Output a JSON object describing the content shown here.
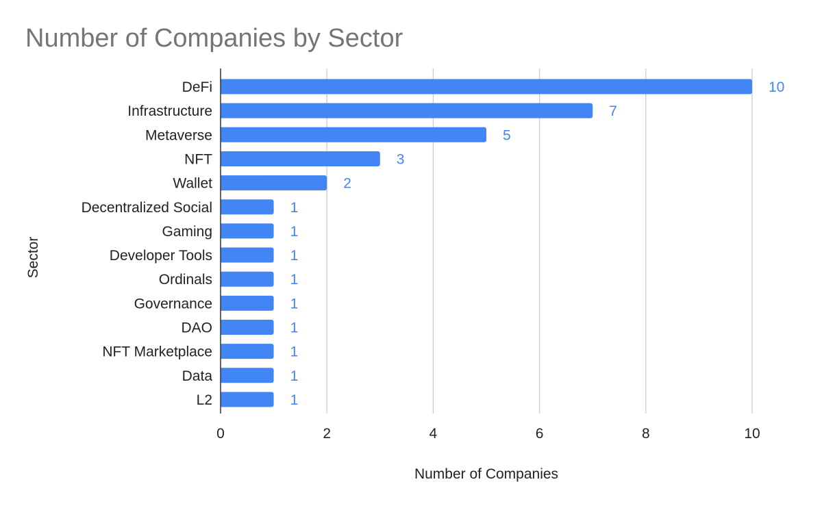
{
  "chart_data": {
    "type": "bar",
    "orientation": "horizontal",
    "title": "Number of Companies by Sector",
    "xlabel": "Number of Companies",
    "ylabel": "Sector",
    "categories": [
      "DeFi",
      "Infrastructure",
      "Metaverse",
      "NFT",
      "Wallet",
      "Decentralized Social",
      "Gaming",
      "Developer Tools",
      "Ordinals",
      "Governance",
      "DAO",
      "NFT Marketplace",
      "Data",
      "L2"
    ],
    "values": [
      10,
      7,
      5,
      3,
      2,
      1,
      1,
      1,
      1,
      1,
      1,
      1,
      1,
      1
    ],
    "xlim": [
      0,
      10
    ],
    "xticks": [
      0,
      2,
      4,
      6,
      8,
      10
    ],
    "grid": true,
    "legend": "none",
    "data_labels": true
  },
  "colors": {
    "bar": "#4285f4",
    "data_label": "#4285f4",
    "title": "#757575",
    "text": "#222222",
    "grid": "#cccccc",
    "axis": "#333333"
  }
}
